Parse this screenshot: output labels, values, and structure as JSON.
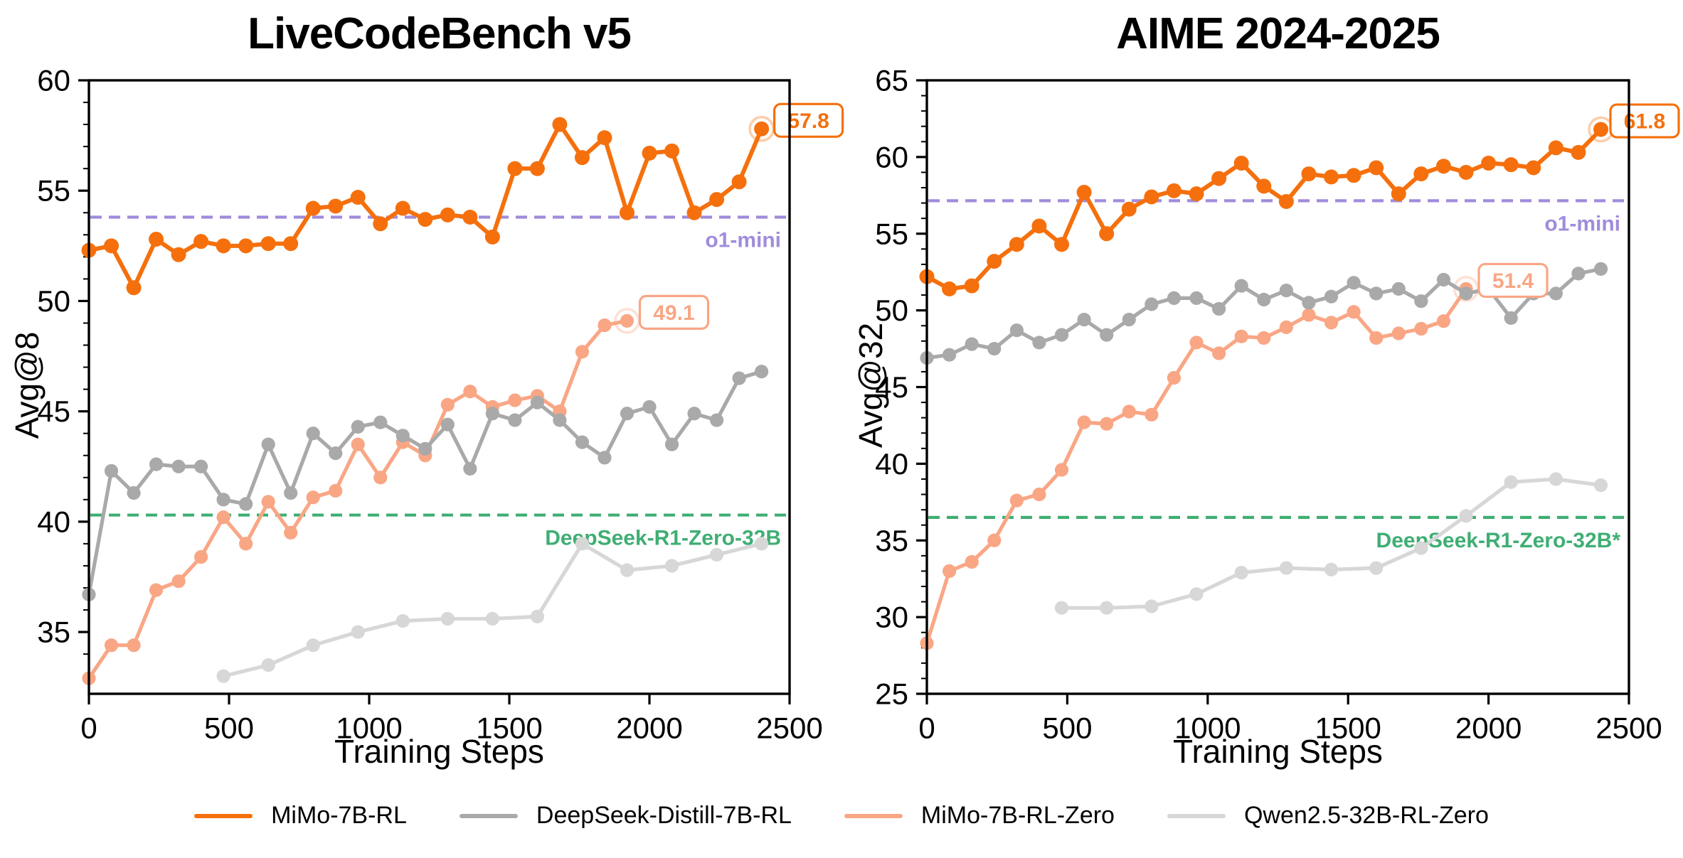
{
  "figure": {
    "background": "#ffffff",
    "legend": {
      "items": [
        {
          "key": "mimo-7b-rl",
          "label": "MiMo-7B-RL",
          "color": "#F5700D"
        },
        {
          "key": "deepseek-distill-7b-rl",
          "label": "DeepSeek-Distill-7B-RL",
          "color": "#A9A9A9"
        },
        {
          "key": "mimo-7b-rl-zero",
          "label": "MiMo-7B-RL-Zero",
          "color": "#F9A685"
        },
        {
          "key": "qwen2.5-32b-rl-zero",
          "label": "Qwen2.5-32B-RL-Zero",
          "color": "#D7D7D7"
        }
      ]
    }
  },
  "chart_data": [
    {
      "type": "line",
      "title": "LiveCodeBench v5",
      "xlabel": "Training Steps",
      "ylabel": "Avg@8",
      "xlim": [
        0,
        2500
      ],
      "ylim": [
        32.2,
        60
      ],
      "xticks": [
        0,
        500,
        1000,
        1500,
        2000,
        2500
      ],
      "yticks": [
        35,
        40,
        45,
        50,
        55,
        60
      ],
      "minor_y_step": 1,
      "grid": false,
      "reference_lines": [
        {
          "label": "o1-mini",
          "value": 53.8,
          "color": "#A08CDB"
        },
        {
          "label": "DeepSeek-R1-Zero-32B",
          "value": 40.3,
          "color": "#3FAE73"
        }
      ],
      "series": [
        {
          "name": "MiMo-7B-RL",
          "color": "#F5700D",
          "x0": 0,
          "dx": 80,
          "end_label": "57.8",
          "values": [
            52.3,
            52.5,
            50.6,
            52.8,
            52.1,
            52.7,
            52.5,
            52.5,
            52.6,
            52.6,
            54.2,
            54.3,
            54.7,
            53.5,
            54.2,
            53.7,
            53.9,
            53.8,
            52.9,
            56.0,
            56.0,
            58.0,
            56.5,
            57.4,
            54.0,
            56.7,
            56.8,
            54.0,
            54.6,
            55.4,
            57.8
          ]
        },
        {
          "name": "DeepSeek-Distill-7B-RL",
          "color": "#A9A9A9",
          "x0": 0,
          "dx": 80,
          "values": [
            36.7,
            42.3,
            41.3,
            42.6,
            42.5,
            42.5,
            41.0,
            40.8,
            43.5,
            41.3,
            44.0,
            43.1,
            44.3,
            44.5,
            43.9,
            43.3,
            44.4,
            42.4,
            44.9,
            44.6,
            45.4,
            44.6,
            43.6,
            42.9,
            44.9,
            45.2,
            43.5,
            44.9,
            44.6,
            46.5,
            46.8
          ]
        },
        {
          "name": "MiMo-7B-RL-Zero",
          "color": "#F9A685",
          "x0": 0,
          "dx": 80,
          "end_label": "49.1",
          "values": [
            32.9,
            34.4,
            34.4,
            36.9,
            37.3,
            38.4,
            40.2,
            39.0,
            40.9,
            39.5,
            41.1,
            41.4,
            43.5,
            42.0,
            43.6,
            43.0,
            45.3,
            45.9,
            45.2,
            45.5,
            45.7,
            45.0,
            47.7,
            48.9,
            49.1
          ]
        },
        {
          "name": "Qwen2.5-32B-RL-Zero",
          "color": "#D7D7D7",
          "x0": 480,
          "dx": 160,
          "values": [
            33.0,
            33.5,
            34.4,
            35.0,
            35.5,
            35.6,
            35.6,
            35.7,
            39.0,
            37.8,
            38.0,
            38.5,
            39.0
          ]
        }
      ]
    },
    {
      "type": "line",
      "title": "AIME 2024-2025",
      "xlabel": "Training Steps",
      "ylabel": "Avg@32",
      "xlim": [
        0,
        2500
      ],
      "ylim": [
        25,
        65
      ],
      "xticks": [
        0,
        500,
        1000,
        1500,
        2000,
        2500
      ],
      "yticks": [
        25,
        30,
        35,
        40,
        45,
        50,
        55,
        60,
        65
      ],
      "minor_y_step": 1,
      "grid": false,
      "reference_lines": [
        {
          "label": "o1-mini",
          "value": 57.15,
          "color": "#A08CDB"
        },
        {
          "label": "DeepSeek-R1-Zero-32B*",
          "value": 36.5,
          "color": "#3FAE73"
        }
      ],
      "series": [
        {
          "name": "MiMo-7B-RL",
          "color": "#F5700D",
          "x0": 0,
          "dx": 80,
          "end_label": "61.8",
          "values": [
            52.2,
            51.4,
            51.6,
            53.2,
            54.3,
            55.5,
            54.3,
            57.7,
            55.0,
            56.6,
            57.4,
            57.8,
            57.6,
            58.6,
            59.6,
            58.1,
            57.1,
            58.9,
            58.7,
            58.8,
            59.3,
            57.6,
            58.9,
            59.4,
            59.0,
            59.6,
            59.5,
            59.3,
            60.6,
            60.3,
            61.8
          ]
        },
        {
          "name": "DeepSeek-Distill-7B-RL",
          "color": "#A9A9A9",
          "x0": 0,
          "dx": 80,
          "values": [
            46.9,
            47.1,
            47.8,
            47.5,
            48.7,
            47.9,
            48.4,
            49.4,
            48.4,
            49.4,
            50.4,
            50.8,
            50.8,
            50.1,
            51.6,
            50.7,
            51.3,
            50.5,
            50.9,
            51.8,
            51.1,
            51.4,
            50.6,
            52.0,
            51.1,
            51.4,
            49.5,
            51.1,
            51.1,
            52.4,
            52.7
          ]
        },
        {
          "name": "MiMo-7B-RL-Zero",
          "color": "#F9A685",
          "x0": 0,
          "dx": 80,
          "end_label": "51.4",
          "values": [
            28.3,
            33.0,
            33.6,
            35.0,
            37.6,
            38.0,
            39.6,
            42.7,
            42.6,
            43.4,
            43.2,
            45.6,
            47.9,
            47.2,
            48.3,
            48.2,
            48.9,
            49.7,
            49.2,
            49.9,
            48.2,
            48.5,
            48.8,
            49.3,
            51.4
          ]
        },
        {
          "name": "Qwen2.5-32B-RL-Zero",
          "color": "#D7D7D7",
          "x0": 480,
          "dx": 160,
          "values": [
            30.6,
            30.6,
            30.7,
            31.5,
            32.9,
            33.2,
            33.1,
            33.2,
            34.5,
            36.6,
            38.8,
            39.0,
            38.6
          ]
        }
      ]
    }
  ]
}
